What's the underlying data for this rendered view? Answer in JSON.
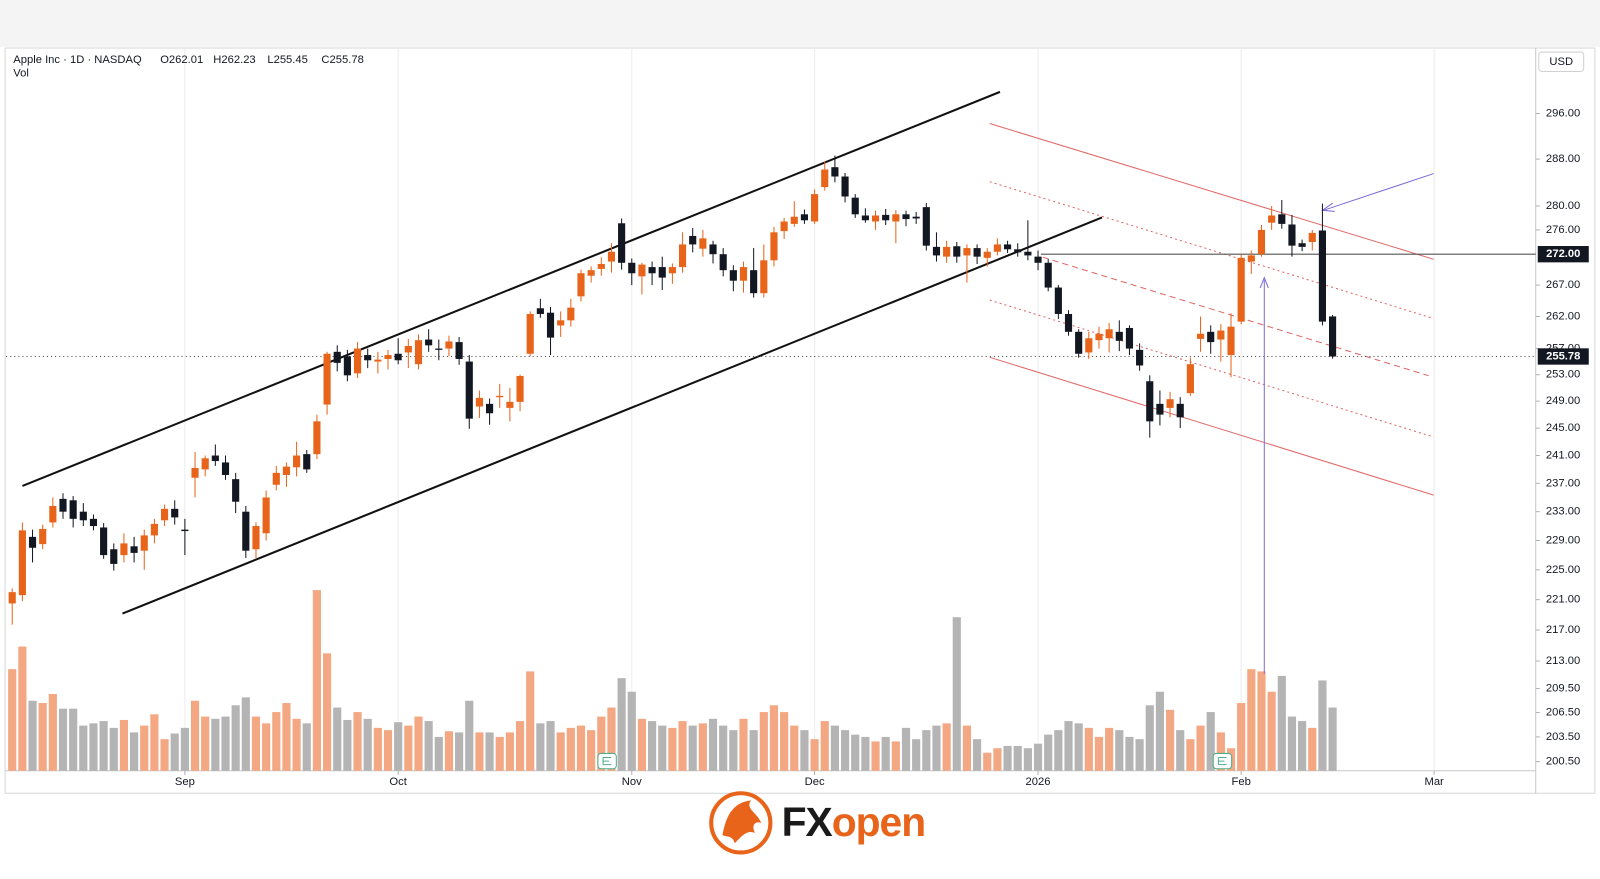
{
  "chart_data": {
    "type": "candlestick",
    "title": "Apple Inc · 1D · NASDAQ",
    "ohlc_labels": [
      "O262.01",
      "H262.23",
      "L255.45",
      "C255.78"
    ],
    "volume_label": "Vol",
    "currency": "USD",
    "brand": [
      "FX",
      "open"
    ],
    "log_scale": true,
    "grid": "x",
    "up_color": "#e8641a",
    "down_color": "#131722",
    "volume_up_color": "#f3a883",
    "volume_down_color": "#b4b4b4",
    "xlim": [
      -0.6,
      150
    ],
    "xticks": [
      {
        "value": 17,
        "label": "Sep"
      },
      {
        "value": 38,
        "label": "Oct"
      },
      {
        "value": 61,
        "label": "Nov"
      },
      {
        "value": 79,
        "label": "Dec"
      },
      {
        "value": 101,
        "label": "2026"
      },
      {
        "value": 121,
        "label": "Feb"
      },
      {
        "value": 140,
        "label": "Mar"
      }
    ],
    "ylim": [
      199.4,
      307.7
    ],
    "yticks": [
      {
        "value": 296,
        "label": "296.00"
      },
      {
        "value": 288,
        "label": "288.00"
      },
      {
        "value": 280,
        "label": "280.00"
      },
      {
        "value": 276,
        "label": "276.00"
      },
      {
        "value": 267,
        "label": "267.00"
      },
      {
        "value": 262,
        "label": "262.00"
      },
      {
        "value": 257,
        "label": "257.00"
      },
      {
        "value": 253,
        "label": "253.00"
      },
      {
        "value": 249,
        "label": "249.00"
      },
      {
        "value": 245,
        "label": "245.00"
      },
      {
        "value": 241,
        "label": "241.00"
      },
      {
        "value": 237,
        "label": "237.00"
      },
      {
        "value": 233,
        "label": "233.00"
      },
      {
        "value": 229,
        "label": "229.00"
      },
      {
        "value": 225,
        "label": "225.00"
      },
      {
        "value": 221,
        "label": "221.00"
      },
      {
        "value": 217,
        "label": "217.00"
      },
      {
        "value": 213,
        "label": "213.00"
      },
      {
        "value": 209.5,
        "label": "209.50"
      },
      {
        "value": 206.5,
        "label": "206.50"
      },
      {
        "value": 203.5,
        "label": "203.50"
      },
      {
        "value": 200.5,
        "label": "200.50"
      }
    ],
    "price_line": {
      "value": 272,
      "label": "272.00"
    },
    "last_price": {
      "value": 255.78,
      "label": "255.78"
    },
    "open": [
      220.5,
      221.6,
      229.5,
      228.5,
      231.5,
      234.8,
      234.6,
      233.0,
      232.0,
      230.8,
      227.8,
      227.0,
      228.2,
      227.6,
      229.7,
      231.8,
      233.4,
      230.5,
      237.8,
      239.0,
      241.0,
      240.0,
      237.6,
      233.0,
      227.8,
      230.0,
      236.8,
      238.2,
      239.3,
      241.2,
      241.2,
      248.5,
      256.5,
      255.8,
      253.2,
      256.0,
      255.0,
      255.4,
      256.2,
      256.4,
      254.6,
      258.4,
      257.0,
      257.0,
      258.0,
      255.0,
      248.2,
      248.6,
      249.6,
      248.0,
      248.9,
      256.2,
      263.3,
      262.6,
      260.6,
      261.4,
      265.2,
      268.5,
      269.6,
      270.8,
      277.1,
      270.6,
      268.4,
      269.9,
      269.9,
      268.9,
      269.9,
      275.0,
      272.9,
      273.6,
      272.0,
      269.4,
      267.7,
      269.4,
      265.7,
      271.0,
      275.8,
      277.0,
      278.6,
      277.4,
      283.2,
      286.6,
      285.0,
      281.4,
      278.4,
      277.4,
      278.5,
      277.4,
      278.6,
      278.2,
      279.8,
      273.2,
      271.6,
      273.3,
      271.8,
      273.0,
      271.4,
      272.4,
      273.6,
      272.8,
      272.4,
      271.6,
      270.6,
      266.6,
      262.4,
      259.6,
      256.4,
      258.3,
      258.6,
      259.6,
      260.2,
      256.8,
      252.0,
      248.6,
      248.0,
      248.6,
      250.2,
      258.5,
      259.6,
      258.4,
      256.0,
      261.2,
      270.8,
      272.0,
      277.2,
      278.6,
      276.9,
      273.8,
      274.0,
      275.9,
      262.01
    ],
    "high": [
      222.5,
      231.5,
      230.5,
      231.2,
      235.0,
      235.6,
      235.2,
      234.2,
      232.6,
      231.4,
      228.6,
      230.0,
      229.5,
      230.5,
      232.0,
      234.0,
      234.6,
      232.0,
      241.5,
      241.0,
      242.6,
      241.0,
      238.5,
      233.8,
      231.5,
      236.0,
      239.5,
      240.0,
      243.0,
      241.8,
      247.0,
      256.5,
      257.5,
      256.8,
      258.0,
      257.0,
      256.5,
      256.8,
      258.6,
      258.5,
      259.2,
      260.0,
      258.4,
      259.0,
      258.8,
      256.0,
      250.6,
      249.4,
      251.6,
      251.0,
      253.0,
      262.8,
      264.8,
      263.5,
      262.8,
      264.8,
      269.5,
      270.0,
      271.5,
      273.8,
      277.9,
      271.3,
      270.6,
      270.8,
      271.6,
      270.5,
      275.6,
      276.3,
      276.0,
      274.2,
      273.0,
      270.2,
      270.8,
      273.0,
      273.6,
      276.5,
      278.0,
      280.8,
      279.4,
      282.8,
      287.6,
      288.6,
      285.6,
      282.0,
      279.6,
      279.2,
      279.5,
      279.3,
      279.2,
      279.0,
      280.5,
      275.6,
      274.2,
      274.0,
      273.6,
      273.6,
      273.0,
      274.6,
      274.2,
      273.8,
      277.6,
      272.6,
      271.2,
      267.0,
      263.0,
      260.0,
      259.6,
      260.4,
      261.0,
      261.4,
      260.6,
      257.8,
      252.9,
      250.6,
      250.4,
      249.6,
      255.6,
      262.0,
      260.6,
      260.8,
      262.5,
      272.0,
      272.6,
      276.8,
      280.0,
      281.0,
      278.5,
      274.4,
      276.0,
      280.4,
      262.23
    ],
    "low": [
      217.7,
      220.8,
      226.0,
      227.8,
      230.8,
      232.0,
      230.8,
      231.0,
      230.4,
      226.5,
      224.9,
      226.0,
      226.0,
      225.0,
      228.6,
      231.0,
      231.2,
      227.0,
      235.0,
      238.0,
      239.5,
      237.5,
      232.8,
      226.6,
      226.6,
      229.0,
      236.0,
      236.5,
      238.0,
      238.5,
      240.5,
      247.0,
      253.5,
      252.0,
      252.5,
      254.0,
      253.2,
      253.8,
      254.6,
      254.0,
      253.8,
      256.5,
      255.2,
      255.8,
      254.5,
      244.9,
      246.5,
      245.5,
      248.0,
      246.0,
      247.5,
      255.8,
      261.8,
      256.0,
      258.8,
      260.4,
      264.4,
      267.4,
      268.5,
      269.0,
      269.5,
      267.0,
      265.5,
      267.0,
      266.2,
      267.2,
      269.0,
      272.3,
      271.6,
      270.5,
      268.4,
      266.0,
      265.8,
      265.0,
      265.0,
      270.0,
      274.5,
      276.5,
      277.0,
      277.0,
      282.6,
      284.0,
      280.6,
      278.0,
      277.2,
      276.0,
      276.8,
      273.8,
      276.6,
      277.0,
      272.6,
      270.8,
      270.6,
      270.6,
      267.4,
      270.4,
      270.0,
      271.8,
      272.2,
      271.6,
      271.0,
      269.4,
      266.0,
      261.6,
      259.0,
      255.6,
      255.4,
      257.0,
      256.4,
      256.6,
      256.0,
      253.6,
      243.6,
      245.4,
      246.6,
      245.0,
      249.8,
      256.5,
      256.2,
      255.0,
      252.6,
      260.8,
      268.8,
      271.6,
      276.0,
      276.2,
      271.6,
      272.5,
      272.6,
      260.6,
      255.45
    ],
    "close": [
      222.0,
      230.4,
      228.0,
      230.6,
      233.8,
      233.0,
      232.0,
      231.8,
      231.0,
      227.0,
      225.8,
      228.6,
      227.3,
      229.7,
      231.3,
      233.4,
      232.2,
      230.3,
      239.2,
      240.6,
      240.2,
      238.2,
      234.4,
      227.6,
      231.0,
      235.0,
      238.5,
      239.4,
      241.0,
      239.0,
      246.0,
      256.2,
      254.8,
      252.9,
      257.0,
      255.2,
      255.3,
      256.0,
      255.2,
      257.4,
      258.3,
      257.5,
      256.8,
      258.1,
      255.4,
      246.4,
      249.5,
      247.2,
      249.8,
      248.9,
      252.8,
      262.4,
      262.4,
      258.7,
      261.4,
      263.4,
      268.9,
      269.4,
      270.4,
      272.4,
      270.6,
      268.9,
      270.3,
      268.9,
      268.2,
      269.9,
      273.6,
      273.6,
      274.6,
      272.0,
      269.4,
      267.7,
      269.9,
      265.7,
      271.0,
      275.6,
      277.4,
      278.2,
      277.6,
      282.0,
      286.2,
      285.0,
      281.6,
      278.6,
      277.6,
      278.4,
      277.6,
      278.6,
      277.8,
      277.9,
      273.4,
      271.8,
      273.2,
      271.6,
      273.0,
      271.6,
      272.4,
      273.6,
      272.8,
      272.3,
      271.8,
      270.6,
      266.6,
      262.4,
      259.6,
      256.2,
      258.6,
      259.3,
      260.0,
      258.2,
      257.0,
      254.4,
      246.0,
      247.0,
      249.3,
      246.6,
      254.6,
      259.3,
      258.0,
      259.8,
      260.4,
      271.4,
      271.8,
      276.0,
      278.4,
      277.0,
      273.4,
      273.2,
      275.5,
      261.2,
      255.78
    ],
    "volume": [
      90,
      110,
      62,
      60,
      68,
      55,
      55,
      40,
      42,
      44,
      38,
      45,
      34,
      40,
      50,
      28,
      33,
      38,
      62,
      48,
      46,
      48,
      58,
      65,
      48,
      42,
      52,
      60,
      46,
      42,
      160,
      104,
      56,
      45,
      52,
      46,
      38,
      36,
      43,
      40,
      48,
      44,
      30,
      35,
      34,
      62,
      34,
      34,
      30,
      34,
      44,
      88,
      42,
      44,
      34,
      38,
      40,
      36,
      48,
      56,
      82,
      70,
      46,
      44,
      40,
      38,
      44,
      40,
      42,
      46,
      40,
      36,
      46,
      36,
      52,
      58,
      52,
      40,
      36,
      28,
      44,
      40,
      36,
      32,
      30,
      26,
      30,
      26,
      38,
      28,
      36,
      40,
      42,
      136,
      40,
      28,
      16,
      20,
      22,
      22,
      20,
      24,
      32,
      36,
      44,
      42,
      38,
      30,
      38,
      36,
      30,
      28,
      58,
      70,
      54,
      36,
      28,
      40,
      52,
      34,
      20,
      60,
      90,
      88,
      70,
      84,
      48,
      44,
      38,
      80,
      56
    ]
  }
}
